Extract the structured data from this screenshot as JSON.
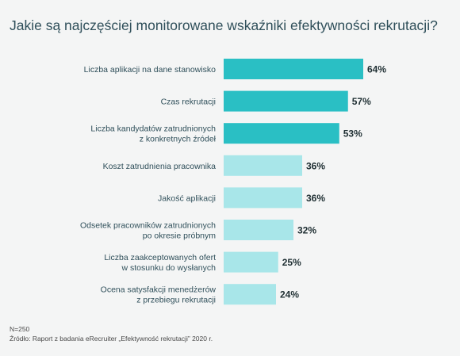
{
  "chart_data": {
    "type": "bar",
    "orientation": "horizontal",
    "title": "Jakie są najczęściej monitorowane wskaźniki efektywności rekrutacji?",
    "categories": [
      [
        "Liczba aplikacji na dane stanowisko"
      ],
      [
        "Czas rekrutacji"
      ],
      [
        "Liczba kandydatów zatrudnionych",
        "z konkretnych źródeł"
      ],
      [
        "Koszt zatrudnienia pracownika"
      ],
      [
        "Jakość aplikacji"
      ],
      [
        "Odsetek pracowników zatrudnionych",
        "po okresie próbnym"
      ],
      [
        "Liczba zaakceptowanych ofert",
        "w stosunku do wysłanych"
      ],
      [
        "Ocena satysfakcji menedżerów",
        "z przebiegu rekrutacji"
      ]
    ],
    "values": [
      64,
      57,
      53,
      36,
      36,
      32,
      25,
      24
    ],
    "value_labels": [
      "64%",
      "57%",
      "53%",
      "36%",
      "36%",
      "32%",
      "25%",
      "24%"
    ],
    "xlim": [
      0,
      100
    ],
    "grid": false,
    "colors": {
      "dark": "#2abfc4",
      "light": "#a8e6e9",
      "label": "#2f4f5a",
      "value": "#1f2f33"
    },
    "highlight_top": 3
  },
  "footer": {
    "n": "N=250",
    "source": "Źródło: Raport z badania eRecruiter „Efektywność rekrutacji” 2020 r."
  }
}
